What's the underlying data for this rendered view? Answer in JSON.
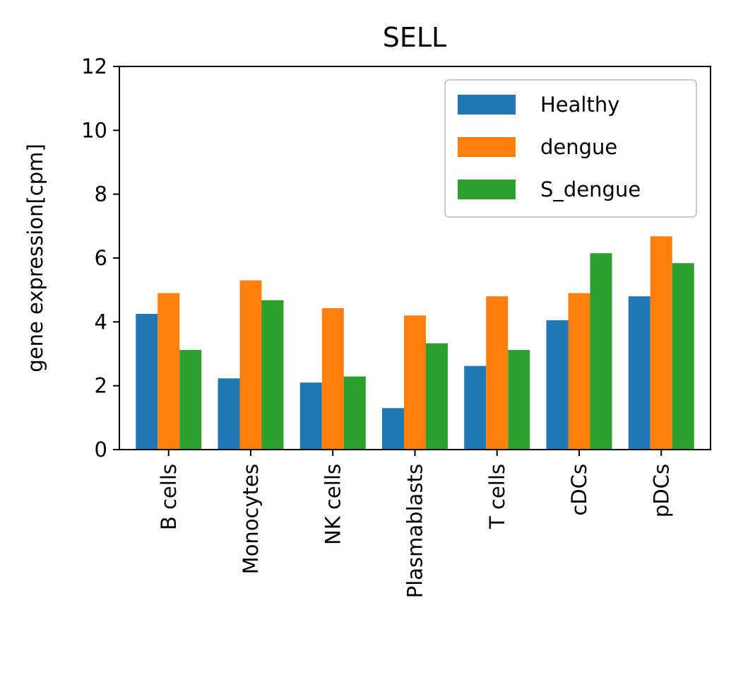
{
  "chart_data": {
    "type": "bar",
    "title": "SELL",
    "xlabel": "",
    "ylabel": "gene expression[cpm]",
    "ylim": [
      0,
      12
    ],
    "yticks": [
      0,
      2,
      4,
      6,
      8,
      10,
      12
    ],
    "categories": [
      "B cells",
      "Monocytes",
      "NK cells",
      "Plasmablasts",
      "T cells",
      "cDCs",
      "pDCs"
    ],
    "series": [
      {
        "name": "Healthy",
        "color": "#1f77b4",
        "values": [
          4.25,
          2.23,
          2.1,
          1.3,
          2.62,
          4.05,
          4.8
        ]
      },
      {
        "name": "dengue",
        "color": "#ff7f0e",
        "values": [
          4.9,
          5.3,
          4.43,
          4.2,
          4.8,
          4.9,
          6.68
        ]
      },
      {
        "name": "S_dengue",
        "color": "#2ca02c",
        "values": [
          3.12,
          4.68,
          2.29,
          3.33,
          3.12,
          6.15,
          5.84
        ]
      }
    ],
    "grid": false,
    "legend_position": "top-right"
  }
}
